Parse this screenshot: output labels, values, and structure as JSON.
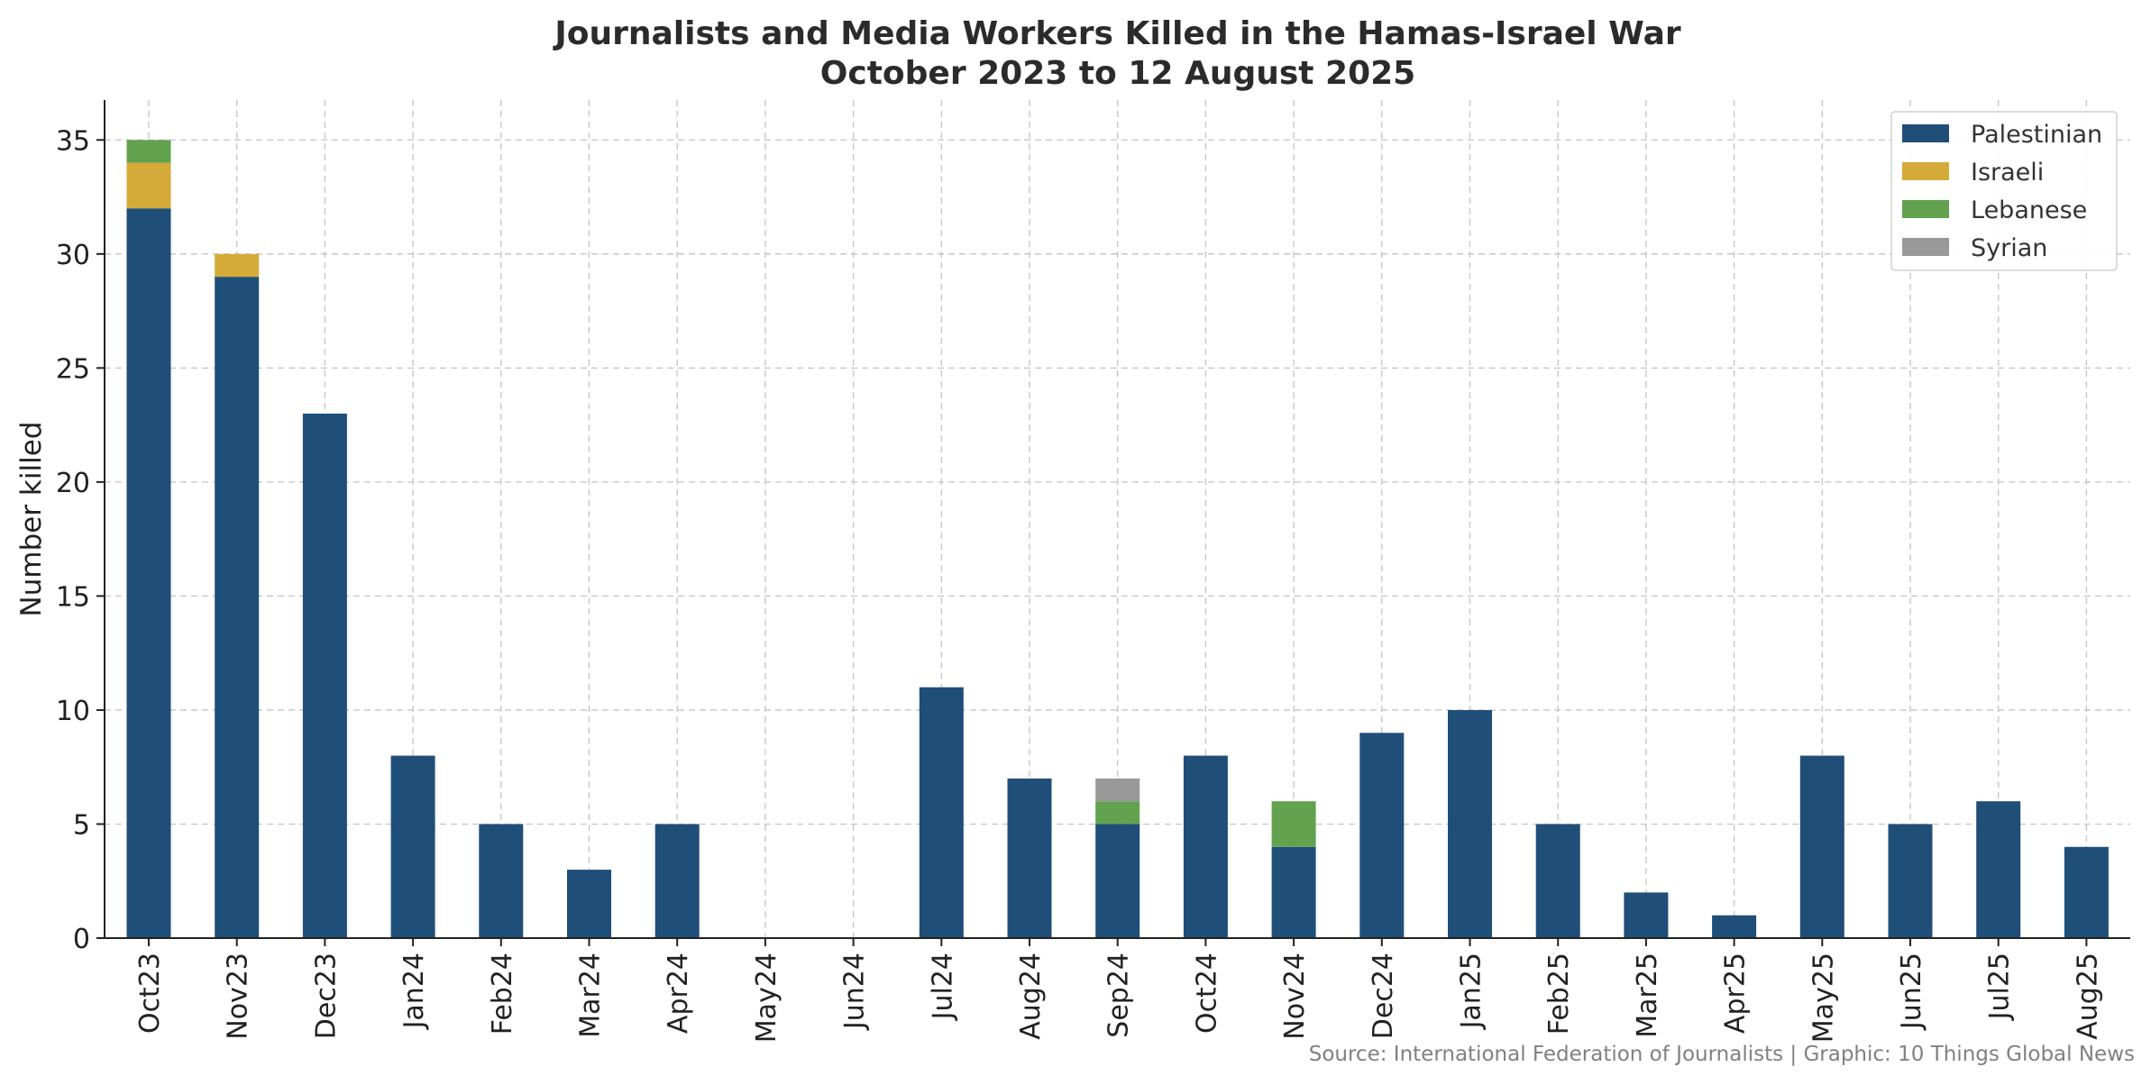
{
  "chart_data": {
    "type": "bar",
    "stacked": true,
    "title": "Journalists and Media Workers Killed in the Hamas-Israel War",
    "subtitle": "October 2023 to 12 August 2025",
    "xlabel": "",
    "ylabel": "Number killed",
    "ylim": [
      0,
      36.75
    ],
    "yticks": [
      0,
      5,
      10,
      15,
      20,
      25,
      30,
      35
    ],
    "grid": true,
    "legend_position": "top-right",
    "categories": [
      "Oct23",
      "Nov23",
      "Dec23",
      "Jan24",
      "Feb24",
      "Mar24",
      "Apr24",
      "May24",
      "Jun24",
      "Jul24",
      "Aug24",
      "Sep24",
      "Oct24",
      "Nov24",
      "Dec24",
      "Jan25",
      "Feb25",
      "Mar25",
      "Apr25",
      "May25",
      "Jun25",
      "Jul25",
      "Aug25"
    ],
    "series": [
      {
        "name": "Palestinian",
        "color": "#1f4e79",
        "values": [
          32,
          29,
          23,
          8,
          5,
          3,
          5,
          0,
          0,
          11,
          7,
          5,
          8,
          4,
          9,
          10,
          5,
          2,
          1,
          8,
          5,
          6,
          4
        ]
      },
      {
        "name": "Israeli",
        "color": "#d4aa38",
        "values": [
          2,
          1,
          0,
          0,
          0,
          0,
          0,
          0,
          0,
          0,
          0,
          0,
          0,
          0,
          0,
          0,
          0,
          0,
          0,
          0,
          0,
          0,
          0
        ]
      },
      {
        "name": "Lebanese",
        "color": "#62a24f",
        "values": [
          1,
          0,
          0,
          0,
          0,
          0,
          0,
          0,
          0,
          0,
          0,
          1,
          0,
          2,
          0,
          0,
          0,
          0,
          0,
          0,
          0,
          0,
          0
        ]
      },
      {
        "name": "Syrian",
        "color": "#999999",
        "values": [
          0,
          0,
          0,
          0,
          0,
          0,
          0,
          0,
          0,
          0,
          0,
          1,
          0,
          0,
          0,
          0,
          0,
          0,
          0,
          0,
          0,
          0,
          0
        ]
      }
    ],
    "source_note": "Source: International Federation of Journalists | Graphic: 10 Things Global News"
  }
}
